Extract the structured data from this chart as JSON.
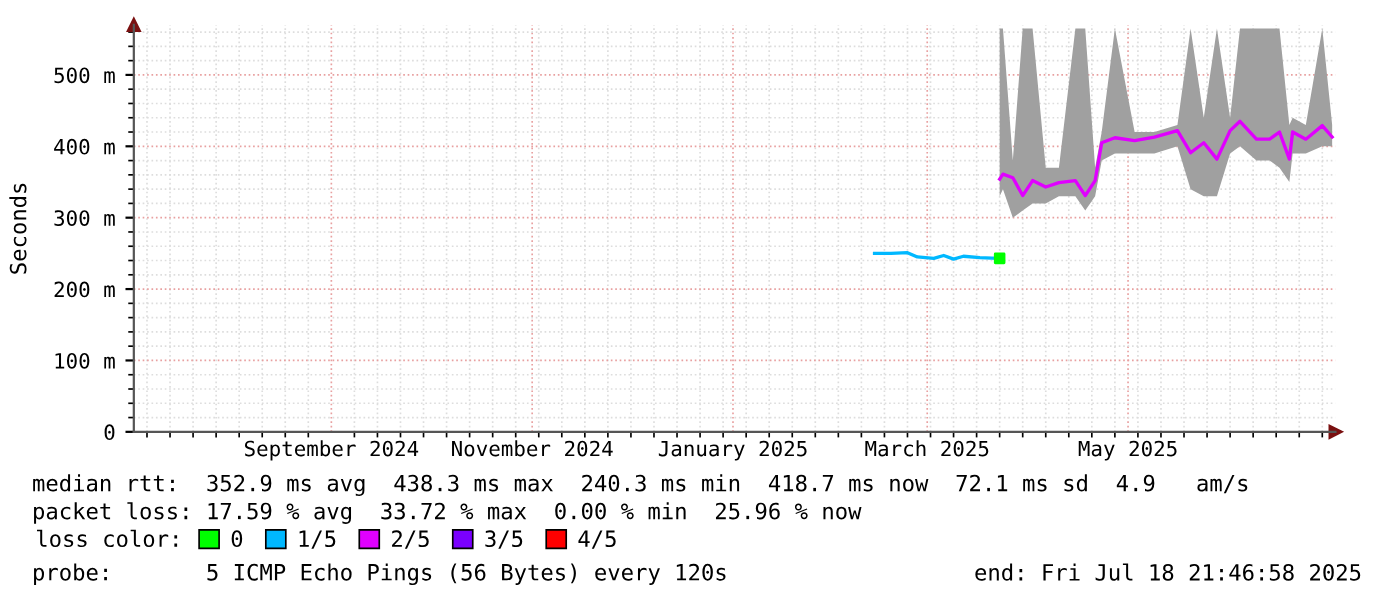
{
  "chart_data": {
    "type": "line",
    "ylabel": "Seconds",
    "xlim": [
      "2024-07-18",
      "2025-07-18"
    ],
    "xticks": [
      {
        "value": "2024-09-16",
        "label": "September 2024"
      },
      {
        "value": "2024-11-16",
        "label": "November 2024"
      },
      {
        "value": "2025-01-16",
        "label": "January 2025"
      },
      {
        "value": "2025-03-16",
        "label": "March 2025"
      },
      {
        "value": "2025-05-16",
        "label": "May 2025"
      }
    ],
    "ylim": [
      0,
      570
    ],
    "yticks": [
      0,
      {
        "value": 100,
        "label": "100 m"
      },
      {
        "value": 200,
        "label": "200 m"
      },
      {
        "value": 300,
        "label": "300 m"
      },
      {
        "value": 400,
        "label": "400 m"
      },
      {
        "value": 500,
        "label": "500 m"
      }
    ],
    "grid": true,
    "legend": "bottom",
    "legend_title": "loss color:",
    "marker": "none",
    "series": [
      {
        "name": "0",
        "type": "scatter",
        "marker": "square",
        "color": "#00ff00",
        "x": [
          "2025-04-07"
        ],
        "values": [
          243
        ]
      },
      {
        "name": "1/5",
        "color": "#00b8ff",
        "x": [
          "2025-02-28",
          "2025-03-05",
          "2025-03-10",
          "2025-03-13",
          "2025-03-18",
          "2025-03-21",
          "2025-03-24",
          "2025-03-27",
          "2025-04-01",
          "2025-04-06"
        ],
        "values": [
          250,
          250,
          251,
          245,
          243,
          247,
          242,
          246,
          244,
          243
        ]
      },
      {
        "name": "2/5",
        "color": "#e000ff",
        "x": [
          "2025-04-07",
          "2025-04-08",
          "2025-04-11",
          "2025-04-14",
          "2025-04-17",
          "2025-04-21",
          "2025-04-25",
          "2025-04-30",
          "2025-05-03",
          "2025-05-06",
          "2025-05-08",
          "2025-05-12",
          "2025-05-18",
          "2025-05-24",
          "2025-05-31",
          "2025-06-04",
          "2025-06-08",
          "2025-06-12",
          "2025-06-16",
          "2025-06-19",
          "2025-06-24",
          "2025-06-28",
          "2025-07-01",
          "2025-07-04",
          "2025-07-05",
          "2025-07-09",
          "2025-07-14",
          "2025-07-17"
        ],
        "values": [
          354,
          361,
          356,
          331,
          352,
          343,
          349,
          352,
          331,
          352,
          405,
          412,
          408,
          413,
          422,
          391,
          405,
          382,
          422,
          435,
          410,
          410,
          420,
          382,
          420,
          410,
          429,
          413
        ],
        "lower": [
          330,
          340,
          300,
          310,
          320,
          320,
          330,
          330,
          310,
          330,
          380,
          390,
          390,
          390,
          400,
          340,
          330,
          330,
          390,
          400,
          380,
          380,
          370,
          350,
          390,
          390,
          400,
          400
        ],
        "upper": [
          565,
          565,
          380,
          565,
          565,
          370,
          370,
          565,
          565,
          370,
          420,
          565,
          420,
          420,
          430,
          565,
          440,
          565,
          440,
          565,
          565,
          565,
          565,
          430,
          440,
          430,
          565,
          430
        ]
      },
      {
        "name": "3/5",
        "color": "#7a00ff"
      },
      {
        "name": "4/5",
        "color": "#ff0000"
      }
    ],
    "annotations": [
      "median rtt:  352.9 ms avg  438.3 ms max  240.3 ms min  418.7 ms now  72.1 ms sd  4.9   am/s",
      "packet loss: 17.59 % avg  33.72 % max  0.00 % min  25.96 % now",
      "probe:       5 ICMP Echo Pings (56 Bytes) every 120s",
      "end: Fri Jul 18 21:46:58 2025"
    ]
  }
}
